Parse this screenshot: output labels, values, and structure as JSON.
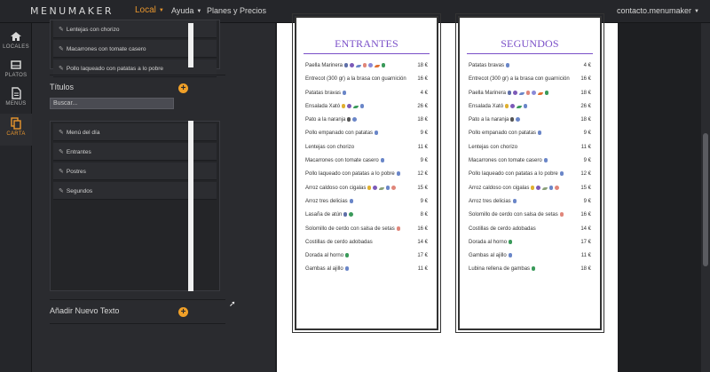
{
  "app": {
    "brand": "MENUMAKER",
    "nav": [
      {
        "label": "Local",
        "active": true,
        "dropdown": true
      },
      {
        "label": "Ayuda",
        "active": false,
        "dropdown": true
      },
      {
        "label": "Planes y Precios",
        "active": false,
        "dropdown": false
      }
    ],
    "account": "contacto.menumaker",
    "accent": "#e8962e"
  },
  "sidebar": {
    "items": [
      {
        "label": "LOCALES",
        "icon": "home-icon"
      },
      {
        "label": "PLATOS",
        "icon": "tray-icon"
      },
      {
        "label": "MENÚS",
        "icon": "document-icon"
      },
      {
        "label": "CARTA",
        "icon": "copy-icon",
        "active": true
      }
    ]
  },
  "editor": {
    "dish_list": [
      "Lentejas con chorizo",
      "Macarrones con tomate casero",
      "Pollo laqueado con patatas a lo pobre"
    ],
    "titles_heading": "Títulos",
    "search_placeholder": "Buscar...",
    "title_list": [
      "Menú del día",
      "Entrantes",
      "Postres",
      "Segundos"
    ],
    "add_text_heading": "Añadir Nuevo Texto"
  },
  "menu": {
    "columns": [
      {
        "heading": "ENTRANTES",
        "dishes": [
          {
            "name": "Paella Marinera",
            "price": "18 €",
            "allergens": [
              "#5e6fa8",
              "#7c5ab8",
              "#6a86c8",
              "#e0867a",
              "#8a8ad8",
              "#e07030",
              "#3a9a5a"
            ]
          },
          {
            "name": "Entrecot (300 gr) a la brasa con guarnición",
            "price": "16 €",
            "allergens": []
          },
          {
            "name": "Patatas bravas",
            "price": "4 €",
            "allergens": [
              "#6a86c8"
            ]
          },
          {
            "name": "Ensalada Xató",
            "price": "26 €",
            "allergens": [
              "#e0b030",
              "#7c5ab8",
              "#3a9a5a",
              "#6a86c8"
            ]
          },
          {
            "name": "Pato a la naranja",
            "price": "18 €",
            "allergens": [
              "#555555",
              "#6a86c8"
            ]
          },
          {
            "name": "Pollo empanado con patatas",
            "price": "9 €",
            "allergens": [
              "#6a86c8"
            ]
          },
          {
            "name": "Lentejas con chorizo",
            "price": "11 €",
            "allergens": []
          },
          {
            "name": "Macarrones con tomate casero",
            "price": "9 €",
            "allergens": [
              "#6a86c8"
            ]
          },
          {
            "name": "Pollo laqueado con patatas a lo pobre",
            "price": "12 €",
            "allergens": [
              "#6a86c8"
            ]
          },
          {
            "name": "Arroz caldoso con cigalas",
            "price": "15 €",
            "allergens": [
              "#e0b030",
              "#7c5ab8",
              "#8aa07a",
              "#6a86c8",
              "#e0867a"
            ]
          },
          {
            "name": "Arroz tres delicias",
            "price": "9 €",
            "allergens": [
              "#6a86c8"
            ]
          },
          {
            "name": "Lasaña de atún",
            "price": "8 €",
            "allergens": [
              "#5e6fa8",
              "#3a9a5a"
            ]
          },
          {
            "name": "Solomillo de cerdo con salsa de setas",
            "price": "16 €",
            "allergens": [
              "#e0867a"
            ]
          },
          {
            "name": "Costillas de cerdo adobadas",
            "price": "14 €",
            "allergens": []
          },
          {
            "name": "Dorada al horno",
            "price": "17 €",
            "allergens": [
              "#3a9a5a"
            ]
          },
          {
            "name": "Gambas al ajillo",
            "price": "11 €",
            "allergens": [
              "#6a86c8"
            ]
          }
        ]
      },
      {
        "heading": "SEGUNDOS",
        "dishes": [
          {
            "name": "Patatas bravas",
            "price": "4 €",
            "allergens": [
              "#6a86c8"
            ]
          },
          {
            "name": "Entrecot (300 gr) a la brasa con guarnición",
            "price": "16 €",
            "allergens": []
          },
          {
            "name": "Paella Marinera",
            "price": "18 €",
            "allergens": [
              "#5e6fa8",
              "#7c5ab8",
              "#6a86c8",
              "#e0867a",
              "#8a8ad8",
              "#e07030",
              "#3a9a5a"
            ]
          },
          {
            "name": "Ensalada Xató",
            "price": "26 €",
            "allergens": [
              "#e0b030",
              "#7c5ab8",
              "#3a9a5a",
              "#6a86c8"
            ]
          },
          {
            "name": "Pato a la naranja",
            "price": "18 €",
            "allergens": [
              "#555555",
              "#6a86c8"
            ]
          },
          {
            "name": "Pollo empanado con patatas",
            "price": "9 €",
            "allergens": [
              "#6a86c8"
            ]
          },
          {
            "name": "Lentejas con chorizo",
            "price": "11 €",
            "allergens": []
          },
          {
            "name": "Macarrones con tomate casero",
            "price": "9 €",
            "allergens": [
              "#6a86c8"
            ]
          },
          {
            "name": "Pollo laqueado con patatas a lo pobre",
            "price": "12 €",
            "allergens": [
              "#6a86c8"
            ]
          },
          {
            "name": "Arroz caldoso con cigalas",
            "price": "15 €",
            "allergens": [
              "#e0b030",
              "#7c5ab8",
              "#8aa07a",
              "#6a86c8",
              "#e0867a"
            ]
          },
          {
            "name": "Arroz tres delicias",
            "price": "9 €",
            "allergens": [
              "#6a86c8"
            ]
          },
          {
            "name": "Solomillo de cerdo con salsa de setas",
            "price": "16 €",
            "allergens": [
              "#e0867a"
            ]
          },
          {
            "name": "Costillas de cerdo adobadas",
            "price": "14 €",
            "allergens": []
          },
          {
            "name": "Dorada al horno",
            "price": "17 €",
            "allergens": [
              "#3a9a5a"
            ]
          },
          {
            "name": "Gambas al ajillo",
            "price": "11 €",
            "allergens": [
              "#6a86c8"
            ]
          },
          {
            "name": "Lubina rellena de gambas",
            "price": "18 €",
            "allergens": [
              "#3a9a5a"
            ]
          }
        ]
      }
    ]
  }
}
